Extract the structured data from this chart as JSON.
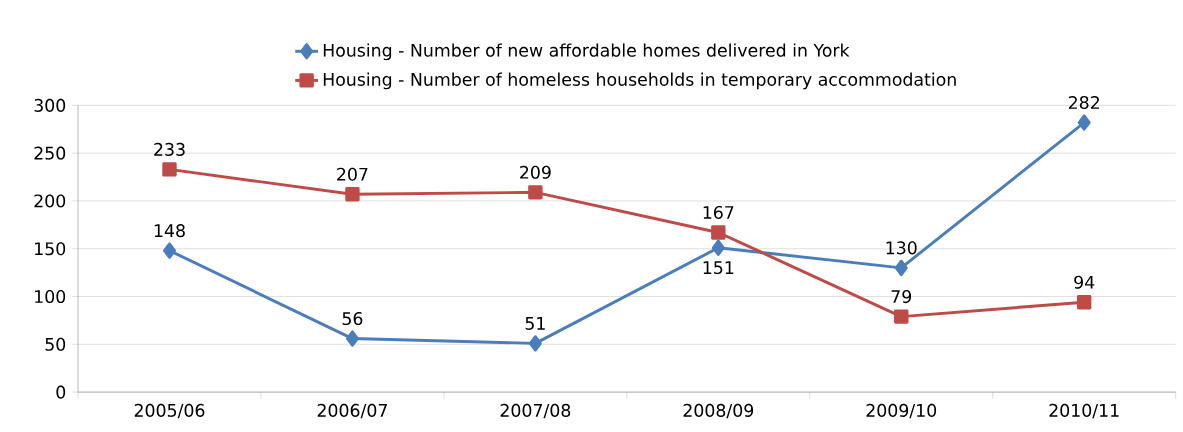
{
  "chart_data": {
    "type": "line",
    "categories": [
      "2005/06",
      "2006/07",
      "2007/08",
      "2008/09",
      "2009/10",
      "2010/11"
    ],
    "series": [
      {
        "name": "Housing - Number of new affordable homes delivered in York",
        "color": "#4a7ebb",
        "marker": "diamond",
        "values": [
          148,
          56,
          51,
          151,
          130,
          282
        ]
      },
      {
        "name": "Housing - Number of homeless households in temporary accommodation",
        "color": "#be4b48",
        "marker": "square",
        "values": [
          233,
          207,
          209,
          167,
          79,
          94
        ]
      }
    ],
    "ylim": [
      0,
      300
    ],
    "yticks": [
      0,
      50,
      100,
      150,
      200,
      250,
      300
    ],
    "grid": "y",
    "legend": "top",
    "data_labels": true,
    "line_style": "solid"
  }
}
